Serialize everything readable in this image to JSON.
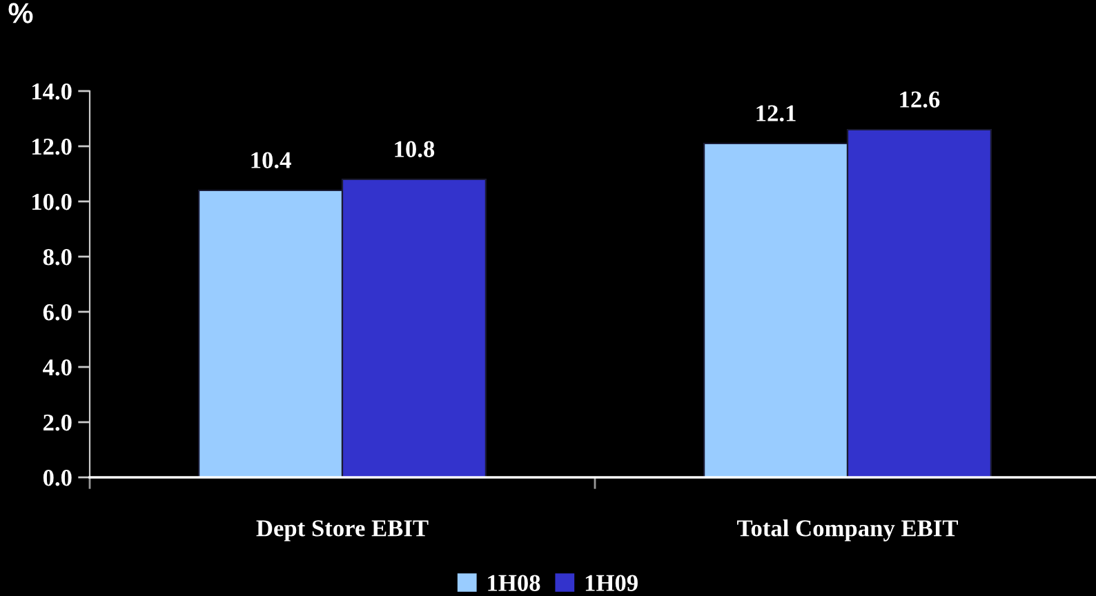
{
  "chart_data": {
    "type": "bar",
    "ylabel": "%",
    "categories": [
      "Dept Store EBIT",
      "Total Company EBIT"
    ],
    "series": [
      {
        "name": "1H08",
        "color": "#99ccff",
        "values": [
          10.4,
          12.1
        ]
      },
      {
        "name": "1H09",
        "color": "#3333cc",
        "values": [
          10.8,
          12.6
        ]
      }
    ],
    "ylim": [
      0,
      14
    ],
    "yticks": [
      {
        "value": 0,
        "label": "0.0"
      },
      {
        "value": 2,
        "label": "2.0"
      },
      {
        "value": 4,
        "label": "4.0"
      },
      {
        "value": 6,
        "label": "6.0"
      },
      {
        "value": 8,
        "label": "8.0"
      },
      {
        "value": 10,
        "label": "10.0"
      },
      {
        "value": 12,
        "label": "12.0"
      },
      {
        "value": 14,
        "label": "14.0"
      }
    ],
    "data_labels": true,
    "grid": false,
    "legend": "bottom"
  }
}
